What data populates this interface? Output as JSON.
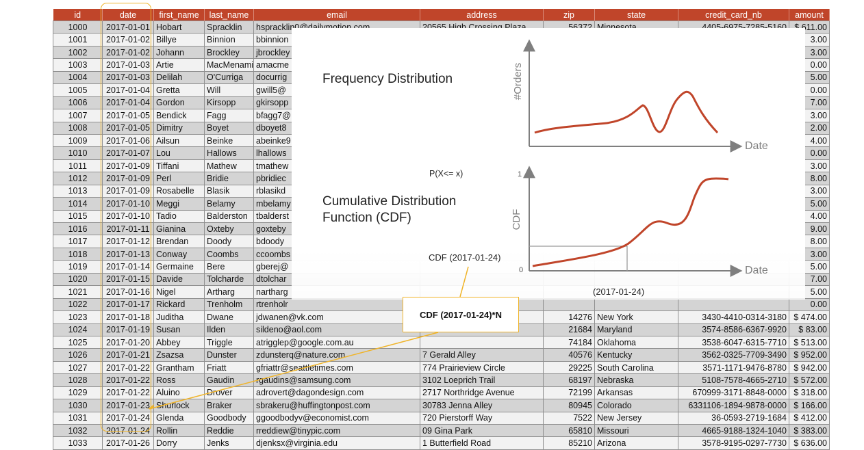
{
  "table": {
    "columns": [
      "id",
      "date",
      "first_name",
      "last_name",
      "email",
      "address",
      "zip",
      "state",
      "credit_card_nb",
      "amount"
    ],
    "rows": [
      [
        "1000",
        "2017-01-01",
        "Hobart",
        "Spracklin",
        "hspracklin0@dailymotion.com",
        "20565 High Crossing Plaza",
        "56372",
        "Minnesota",
        "4405-6975-7285-5160",
        "$ 611.00"
      ],
      [
        "1001",
        "2017-01-02",
        "Billye",
        "Binnion",
        "bbinnion",
        "",
        "",
        "",
        "",
        "3.00"
      ],
      [
        "1002",
        "2017-01-02",
        "Johann",
        "Brockley",
        "jbrockley",
        "",
        "",
        "",
        "",
        "3.00"
      ],
      [
        "1003",
        "2017-01-03",
        "Artie",
        "MacMenamin",
        "amacme",
        "",
        "",
        "",
        "",
        "0.00"
      ],
      [
        "1004",
        "2017-01-03",
        "Delilah",
        "O'Curriga",
        "docurrig",
        "",
        "",
        "",
        "",
        "5.00"
      ],
      [
        "1005",
        "2017-01-04",
        "Gretta",
        "Will",
        "gwill5@",
        "",
        "",
        "",
        "",
        "0.00"
      ],
      [
        "1006",
        "2017-01-04",
        "Gordon",
        "Kirsopp",
        "gkirsopp",
        "",
        "",
        "",
        "",
        "7.00"
      ],
      [
        "1007",
        "2017-01-05",
        "Bendick",
        "Fagg",
        "bfagg7@",
        "",
        "",
        "",
        "",
        "3.00"
      ],
      [
        "1008",
        "2017-01-05",
        "Dimitry",
        "Boyet",
        "dboyet8",
        "",
        "",
        "",
        "",
        "2.00"
      ],
      [
        "1009",
        "2017-01-06",
        "Ailsun",
        "Beinke",
        "abeinke9",
        "",
        "",
        "",
        "",
        "4.00"
      ],
      [
        "1010",
        "2017-01-07",
        "Lou",
        "Hallows",
        "lhallows",
        "",
        "",
        "",
        "",
        "0.00"
      ],
      [
        "1011",
        "2017-01-09",
        "Tiffani",
        "Mathew",
        "tmathew",
        "",
        "",
        "",
        "",
        "3.00"
      ],
      [
        "1012",
        "2017-01-09",
        "Perl",
        "Bridie",
        "pbridiec",
        "",
        "",
        "",
        "",
        "8.00"
      ],
      [
        "1013",
        "2017-01-09",
        "Rosabelle",
        "Blasik",
        "rblasikd",
        "",
        "",
        "",
        "",
        "3.00"
      ],
      [
        "1014",
        "2017-01-10",
        "Meggi",
        "Belamy",
        "mbelamy",
        "",
        "",
        "",
        "",
        "5.00"
      ],
      [
        "1015",
        "2017-01-10",
        "Tadio",
        "Balderston",
        "tbalderst",
        "",
        "",
        "",
        "",
        "4.00"
      ],
      [
        "1016",
        "2017-01-11",
        "Gianina",
        "Oxteby",
        "goxteby",
        "",
        "",
        "",
        "",
        "9.00"
      ],
      [
        "1017",
        "2017-01-12",
        "Brendan",
        "Doody",
        "bdoody",
        "",
        "",
        "",
        "",
        "8.00"
      ],
      [
        "1018",
        "2017-01-13",
        "Conway",
        "Coombs",
        "ccoombs",
        "",
        "",
        "",
        "",
        "3.00"
      ],
      [
        "1019",
        "2017-01-14",
        "Germaine",
        "Bere",
        "gberej@",
        "",
        "",
        "",
        "",
        "5.00"
      ],
      [
        "1020",
        "2017-01-15",
        "Davide",
        "Tolcharde",
        "dtolchar",
        "",
        "",
        "",
        "",
        "7.00"
      ],
      [
        "1021",
        "2017-01-16",
        "Nigel",
        "Artharg",
        "nartharg",
        "",
        "",
        "",
        "",
        "5.00"
      ],
      [
        "1022",
        "2017-01-17",
        "Rickard",
        "Trenholm",
        "rtrenholr",
        "",
        "",
        "",
        "",
        "0.00"
      ],
      [
        "1023",
        "2017-01-18",
        "Juditha",
        "Dwane",
        "jdwanen@vk.com",
        "",
        "14276",
        "New York",
        "3430-4410-0314-3180",
        "$ 474.00"
      ],
      [
        "1024",
        "2017-01-19",
        "Susan",
        "Ilden",
        "sildeno@aol.com",
        "",
        "21684",
        "Maryland",
        "3574-8586-6367-9920",
        "$ 83.00"
      ],
      [
        "1025",
        "2017-01-20",
        "Abbey",
        "Triggle",
        "atrigglep@google.com.au",
        "",
        "74184",
        "Oklahoma",
        "3538-6047-6315-7710",
        "$ 513.00"
      ],
      [
        "1026",
        "2017-01-21",
        "Zsazsa",
        "Dunster",
        "zdunsterq@nature.com",
        "7 Gerald Alley",
        "40576",
        "Kentucky",
        "3562-0325-7709-3490",
        "$ 952.00"
      ],
      [
        "1027",
        "2017-01-22",
        "Grantham",
        "Friatt",
        "gfriattr@seattletimes.com",
        "774 Prairieview Circle",
        "29225",
        "South Carolina",
        "3571-1171-9476-8780",
        "$ 942.00"
      ],
      [
        "1028",
        "2017-01-22",
        "Ross",
        "Gaudin",
        "rgaudins@samsung.com",
        "3102 Loeprich Trail",
        "68197",
        "Nebraska",
        "5108-7578-4665-2710",
        "$ 572.00"
      ],
      [
        "1029",
        "2017-01-22",
        "Aluino",
        "Drover",
        "adrovert@dagondesign.com",
        "2717 Northridge Avenue",
        "72199",
        "Arkansas",
        "670999-3171-8848-0000",
        "$ 318.00"
      ],
      [
        "1030",
        "2017-01-23",
        "Shurlock",
        "Braker",
        "sbrakeru@huffingtonpost.com",
        "30783 Jenna Alley",
        "80945",
        "Colorado",
        "6331106-1894-9878-0000",
        "$ 166.00"
      ],
      [
        "1031",
        "2017-01-24",
        "Glenda",
        "Goodbody",
        "ggoodbodyv@economist.com",
        "720 Pierstorff Way",
        "7522",
        "New Jersey",
        "36-0593-2719-1684",
        "$ 412.00"
      ],
      [
        "1032",
        "2017-01-24",
        "Rollin",
        "Reddie",
        "rreddiew@tinypic.com",
        "09 Gina Park",
        "65810",
        "Missouri",
        "4665-9188-1324-1040",
        "$ 383.00"
      ],
      [
        "1033",
        "2017-01-26",
        "Dorry",
        "Jenks",
        "djenksx@virginia.edu",
        "1 Butterfield Road",
        "85210",
        "Arizona",
        "3578-9195-0297-7730",
        "$ 636.00"
      ]
    ]
  },
  "overlay": {
    "freq_title": "Frequency Distribution",
    "freq_ylabel": "#Orders",
    "freq_xlabel": "Date",
    "prob_label": "P(X<= x)",
    "cdf_title_line1": "Cumulative Distribution",
    "cdf_title_line2": "Function (CDF)",
    "cdf_ylabel": "CDF",
    "cdf_xlabel": "Date",
    "cdf_y_top": "1",
    "cdf_y_bottom": "0",
    "cdf_at_label": "CDF (2017-01-24)",
    "x_marker_label": "(2017-01-24)"
  },
  "callout": {
    "text": "CDF (2017-01-24)*N"
  },
  "colors": {
    "header": "#c0452a",
    "curve": "#c0452a",
    "highlight": "#f0b429"
  }
}
